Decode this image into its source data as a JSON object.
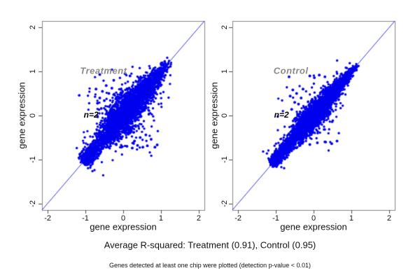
{
  "figure": {
    "caption": "Average R-squared: Treatment (0.91), Control (0.95)",
    "footnote": "Genes detected at least one chip were plotted (detection p-value < 0.01)",
    "background_color": "#ffffff",
    "frame_color": "#858585",
    "tick_color": "#4a4a4a",
    "point_color": "#0000ee",
    "identity_line_color": "#3232d8",
    "group_label_color": "#8a8a8a",
    "annotation_color": "#000000"
  },
  "chart_data": [
    {
      "type": "scatter",
      "group_label": "Treatment",
      "annotation": "n=2",
      "xlabel": "gene expression",
      "ylabel": "gene expression",
      "xlim": [
        -2.15,
        2.15
      ],
      "ylim": [
        -2.15,
        2.15
      ],
      "xticks": [
        -2,
        -1,
        0,
        1,
        2
      ],
      "yticks": [
        -2,
        -1,
        0,
        1,
        2
      ],
      "r_squared": 0.91,
      "identity_line": true,
      "group_label_pos": [
        -0.52,
        1.02
      ],
      "annotation_pos": [
        -0.85,
        0.02
      ],
      "cloud": {
        "n": 3500,
        "t_min": -1.05,
        "t_max": 1.27,
        "sd_base": 0.035,
        "sd_peak": 0.2,
        "sd_center": 0.05,
        "sd_width": 0.6,
        "tail_prob": 0.06,
        "tail_scale": 2.6,
        "seed": 12345
      },
      "outlier_points": [
        [
          -0.62,
          0.93
        ],
        [
          -0.72,
          0.6
        ],
        [
          -0.55,
          0.55
        ],
        [
          -0.62,
          0.4
        ],
        [
          -0.68,
          0.28
        ],
        [
          -0.5,
          0.34
        ],
        [
          -0.58,
          0.16
        ],
        [
          -0.45,
          0.68
        ],
        [
          -0.38,
          0.5
        ],
        [
          -0.3,
          0.62
        ],
        [
          -0.25,
          0.8
        ],
        [
          0.05,
          0.95
        ],
        [
          0.18,
          0.9
        ],
        [
          -0.05,
          -0.72
        ],
        [
          0.1,
          -0.7
        ],
        [
          0.24,
          -0.74
        ],
        [
          0.38,
          -0.68
        ],
        [
          0.52,
          -0.72
        ],
        [
          0.64,
          -0.69
        ],
        [
          0.84,
          -0.72
        ],
        [
          0.9,
          -0.67
        ],
        [
          0.45,
          -0.5
        ],
        [
          0.6,
          -0.44
        ],
        [
          0.74,
          -0.54
        ],
        [
          0.3,
          -0.58
        ]
      ]
    },
    {
      "type": "scatter",
      "group_label": "Control",
      "annotation": "n=2",
      "xlabel": "gene expression",
      "ylabel": "gene expression",
      "xlim": [
        -2.15,
        2.15
      ],
      "ylim": [
        -2.15,
        2.15
      ],
      "xticks": [
        -2,
        -1,
        0,
        1,
        2
      ],
      "yticks": [
        -2,
        -1,
        0,
        1,
        2
      ],
      "r_squared": 0.95,
      "identity_line": true,
      "group_label_pos": [
        -0.6,
        1.02
      ],
      "annotation_pos": [
        -0.85,
        0.02
      ],
      "cloud": {
        "n": 3500,
        "t_min": -1.1,
        "t_max": 1.18,
        "sd_base": 0.03,
        "sd_peak": 0.13,
        "sd_center": 0.0,
        "sd_width": 0.6,
        "tail_prob": 0.05,
        "tail_scale": 2.4,
        "seed": 67890
      },
      "outlier_points": [
        [
          -0.65,
          0.88
        ],
        [
          -0.55,
          0.58
        ],
        [
          -0.62,
          0.44
        ],
        [
          -0.5,
          0.3
        ],
        [
          -0.58,
          0.14
        ],
        [
          -0.45,
          0.5
        ],
        [
          -0.4,
          0.26
        ],
        [
          -0.33,
          0.4
        ],
        [
          -0.28,
          0.6
        ],
        [
          -0.1,
          0.9
        ],
        [
          0.02,
          0.86
        ],
        [
          0.15,
          0.92
        ],
        [
          0.3,
          0.88
        ],
        [
          -0.3,
          -0.62
        ],
        [
          -0.1,
          -0.66
        ],
        [
          0.1,
          -0.62
        ],
        [
          0.3,
          -0.6
        ],
        [
          0.48,
          -0.64
        ],
        [
          0.62,
          -0.58
        ]
      ]
    }
  ]
}
